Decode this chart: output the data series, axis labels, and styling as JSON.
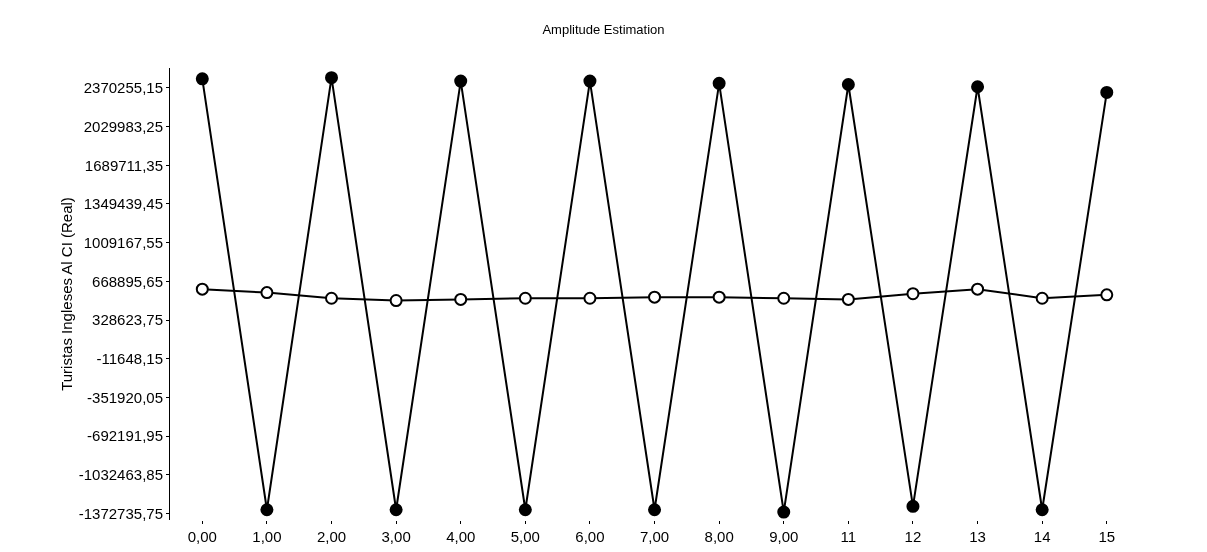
{
  "chart_data": {
    "type": "line",
    "title": "Amplitude Estimation",
    "ylabel": "Turistas Ingleses Al CI (Real)",
    "categories": [
      "0,00",
      "1,00",
      "2,00",
      "3,00",
      "4,00",
      "5,00",
      "6,00",
      "7,00",
      "8,00",
      "9,00",
      "11",
      "12",
      "13",
      "14",
      "15"
    ],
    "series": [
      {
        "color": "#000000",
        "values": [
          2450000,
          -1340000,
          2460000,
          -1340000,
          2430000,
          -1340000,
          2430000,
          -1340000,
          2410000,
          -1360000,
          2400000,
          -1310000,
          2380000,
          -1340000,
          2330000
        ]
      },
      {
        "color": "#000000",
        "values": [
          600000,
          570000,
          520000,
          500000,
          510000,
          520000,
          520000,
          530000,
          530000,
          520000,
          510000,
          560000,
          600000,
          520000,
          550000
        ]
      }
    ],
    "ylim": [
      -1430000,
      2545000
    ],
    "yticks": [
      {
        "value": 2370255.15,
        "label": "2370255,15"
      },
      {
        "value": 2029983.25,
        "label": "2029983,25"
      },
      {
        "value": 1689711.35,
        "label": "1689711,35"
      },
      {
        "value": 1349439.45,
        "label": "1349439,45"
      },
      {
        "value": 1009167.55,
        "label": "1009167,55"
      },
      {
        "value": 668895.65,
        "label": "668895,65"
      },
      {
        "value": 328623.75,
        "label": "328623,75"
      },
      {
        "value": -11648.15,
        "label": "-11648,15"
      },
      {
        "value": -351920.05,
        "label": "-351920,05"
      },
      {
        "value": -692191.95,
        "label": "-692191,95"
      },
      {
        "value": -1032463.85,
        "label": "-1032463,85"
      },
      {
        "value": -1372735.75,
        "label": "-1372735,75"
      }
    ],
    "grid": false,
    "marker": "circle",
    "line_style": "solid"
  }
}
